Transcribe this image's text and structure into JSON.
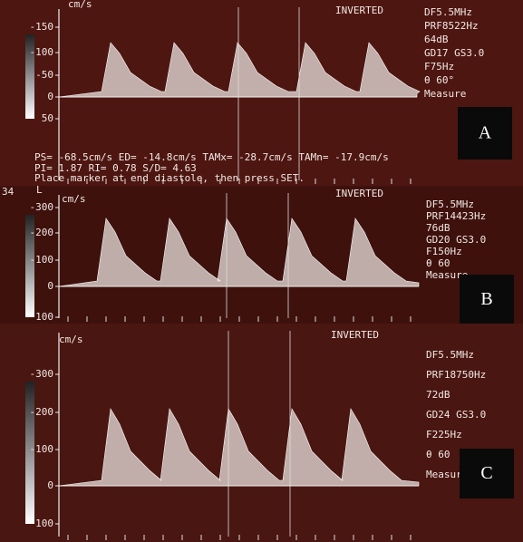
{
  "panels": [
    {
      "label": "A",
      "unit": "cm/s",
      "mode": "INVERTED",
      "ticks": [
        "-150",
        "-100",
        "-50",
        "0",
        "50"
      ],
      "settings": [
        "DF5.5MHz",
        "PRF8522Hz",
        "64dB",
        "GD17  GS3.0",
        "F75Hz",
        "θ 60°",
        "Measure"
      ],
      "measurements": [
        "PS= -68.5cm/s  ED= -14.8cm/s  TAMx= -28.7cm/s  TAMn= -17.9cm/s",
        "PI= 1.87  RI= 0.78  S/D=  4.63",
        "Place marker at end diastole, then press SET."
      ]
    },
    {
      "label": "B",
      "unit": "cm/s",
      "mode": "INVERTED",
      "depth": "34",
      "side": "L",
      "ticks": [
        "-300",
        "-200",
        "-100",
        "0",
        "100"
      ],
      "settings": [
        "DF5.5MHz",
        "PRF14423Hz",
        "76dB",
        "GD20   GS3.0",
        "F150Hz",
        "θ 60",
        "Measure"
      ]
    },
    {
      "label": "C",
      "unit": "cm/s",
      "mode": "INVERTED",
      "ticks": [
        "-300",
        "-200",
        "-100",
        "0",
        "100"
      ],
      "settings": [
        "DF5.5MHz",
        "PRF18750Hz",
        "72dB",
        "GD24    GS3.0",
        "F225Hz",
        "θ 60",
        "Measure"
      ]
    }
  ]
}
